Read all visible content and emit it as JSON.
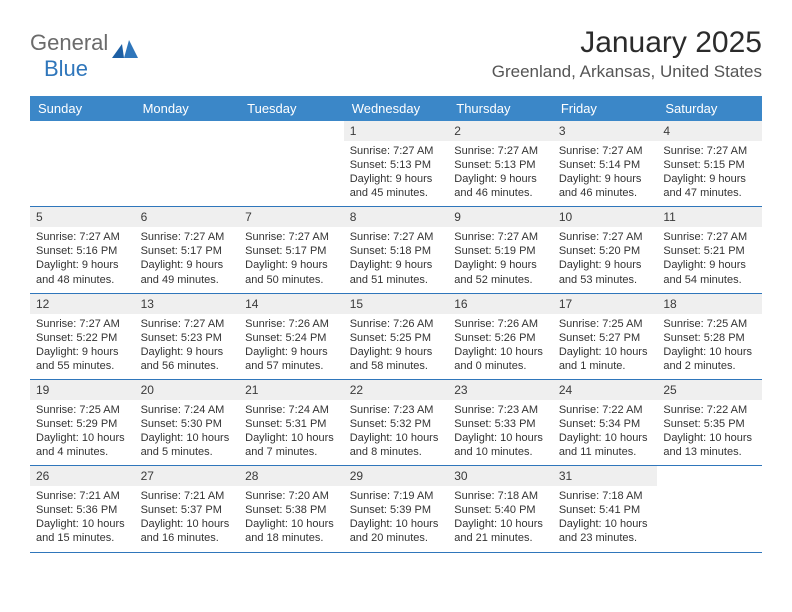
{
  "logo": {
    "text1": "General",
    "text2": "Blue"
  },
  "title": "January 2025",
  "location": "Greenland, Arkansas, United States",
  "colors": {
    "header_bg": "#3b87c8",
    "header_fg": "#ffffff",
    "daynum_bg": "#efefef",
    "rule": "#2f76bb",
    "logo_gray": "#6b6b6b",
    "logo_blue": "#2f76bb"
  },
  "weekdays": [
    "Sunday",
    "Monday",
    "Tuesday",
    "Wednesday",
    "Thursday",
    "Friday",
    "Saturday"
  ],
  "weeks": [
    [
      null,
      null,
      null,
      {
        "n": "1",
        "sr": "7:27 AM",
        "ss": "5:13 PM",
        "dl": "9 hours and 45 minutes."
      },
      {
        "n": "2",
        "sr": "7:27 AM",
        "ss": "5:13 PM",
        "dl": "9 hours and 46 minutes."
      },
      {
        "n": "3",
        "sr": "7:27 AM",
        "ss": "5:14 PM",
        "dl": "9 hours and 46 minutes."
      },
      {
        "n": "4",
        "sr": "7:27 AM",
        "ss": "5:15 PM",
        "dl": "9 hours and 47 minutes."
      }
    ],
    [
      {
        "n": "5",
        "sr": "7:27 AM",
        "ss": "5:16 PM",
        "dl": "9 hours and 48 minutes."
      },
      {
        "n": "6",
        "sr": "7:27 AM",
        "ss": "5:17 PM",
        "dl": "9 hours and 49 minutes."
      },
      {
        "n": "7",
        "sr": "7:27 AM",
        "ss": "5:17 PM",
        "dl": "9 hours and 50 minutes."
      },
      {
        "n": "8",
        "sr": "7:27 AM",
        "ss": "5:18 PM",
        "dl": "9 hours and 51 minutes."
      },
      {
        "n": "9",
        "sr": "7:27 AM",
        "ss": "5:19 PM",
        "dl": "9 hours and 52 minutes."
      },
      {
        "n": "10",
        "sr": "7:27 AM",
        "ss": "5:20 PM",
        "dl": "9 hours and 53 minutes."
      },
      {
        "n": "11",
        "sr": "7:27 AM",
        "ss": "5:21 PM",
        "dl": "9 hours and 54 minutes."
      }
    ],
    [
      {
        "n": "12",
        "sr": "7:27 AM",
        "ss": "5:22 PM",
        "dl": "9 hours and 55 minutes."
      },
      {
        "n": "13",
        "sr": "7:27 AM",
        "ss": "5:23 PM",
        "dl": "9 hours and 56 minutes."
      },
      {
        "n": "14",
        "sr": "7:26 AM",
        "ss": "5:24 PM",
        "dl": "9 hours and 57 minutes."
      },
      {
        "n": "15",
        "sr": "7:26 AM",
        "ss": "5:25 PM",
        "dl": "9 hours and 58 minutes."
      },
      {
        "n": "16",
        "sr": "7:26 AM",
        "ss": "5:26 PM",
        "dl": "10 hours and 0 minutes."
      },
      {
        "n": "17",
        "sr": "7:25 AM",
        "ss": "5:27 PM",
        "dl": "10 hours and 1 minute."
      },
      {
        "n": "18",
        "sr": "7:25 AM",
        "ss": "5:28 PM",
        "dl": "10 hours and 2 minutes."
      }
    ],
    [
      {
        "n": "19",
        "sr": "7:25 AM",
        "ss": "5:29 PM",
        "dl": "10 hours and 4 minutes."
      },
      {
        "n": "20",
        "sr": "7:24 AM",
        "ss": "5:30 PM",
        "dl": "10 hours and 5 minutes."
      },
      {
        "n": "21",
        "sr": "7:24 AM",
        "ss": "5:31 PM",
        "dl": "10 hours and 7 minutes."
      },
      {
        "n": "22",
        "sr": "7:23 AM",
        "ss": "5:32 PM",
        "dl": "10 hours and 8 minutes."
      },
      {
        "n": "23",
        "sr": "7:23 AM",
        "ss": "5:33 PM",
        "dl": "10 hours and 10 minutes."
      },
      {
        "n": "24",
        "sr": "7:22 AM",
        "ss": "5:34 PM",
        "dl": "10 hours and 11 minutes."
      },
      {
        "n": "25",
        "sr": "7:22 AM",
        "ss": "5:35 PM",
        "dl": "10 hours and 13 minutes."
      }
    ],
    [
      {
        "n": "26",
        "sr": "7:21 AM",
        "ss": "5:36 PM",
        "dl": "10 hours and 15 minutes."
      },
      {
        "n": "27",
        "sr": "7:21 AM",
        "ss": "5:37 PM",
        "dl": "10 hours and 16 minutes."
      },
      {
        "n": "28",
        "sr": "7:20 AM",
        "ss": "5:38 PM",
        "dl": "10 hours and 18 minutes."
      },
      {
        "n": "29",
        "sr": "7:19 AM",
        "ss": "5:39 PM",
        "dl": "10 hours and 20 minutes."
      },
      {
        "n": "30",
        "sr": "7:18 AM",
        "ss": "5:40 PM",
        "dl": "10 hours and 21 minutes."
      },
      {
        "n": "31",
        "sr": "7:18 AM",
        "ss": "5:41 PM",
        "dl": "10 hours and 23 minutes."
      },
      null
    ]
  ],
  "labels": {
    "sunrise": "Sunrise:",
    "sunset": "Sunset:",
    "daylight": "Daylight:"
  }
}
